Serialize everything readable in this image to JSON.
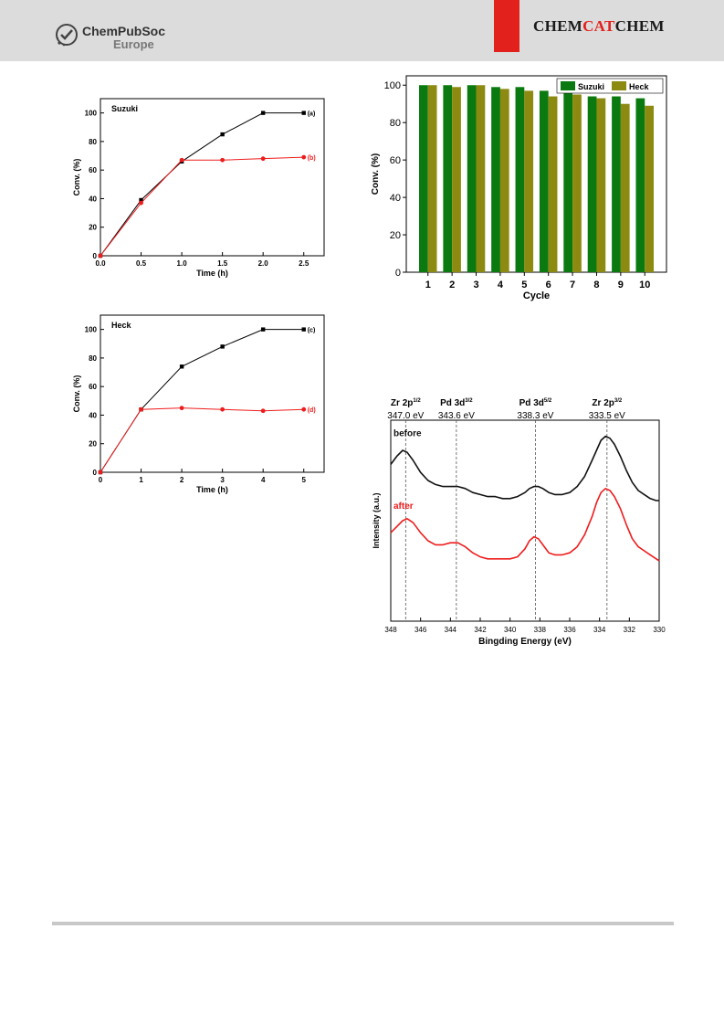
{
  "header": {
    "publisher_main": "ChemPubSoc",
    "publisher_sub": "Europe",
    "journal_part1": "CHEM",
    "journal_part2": "CAT",
    "journal_part3": "CHEM",
    "accent_color": "#e2211c",
    "header_bg": "#dcdcdc"
  },
  "chart_data": [
    {
      "id": "suzuki",
      "type": "line",
      "title": "Suzuki",
      "xlabel": "Time (h)",
      "ylabel": "Conv. (%)",
      "xlim": [
        0,
        2.75
      ],
      "ylim": [
        0,
        110
      ],
      "xticks": [
        0,
        0.5,
        1.0,
        1.5,
        2.0,
        2.5
      ],
      "xtick_labels": [
        "0.0",
        "0.5",
        "1.0",
        "1.5",
        "2.0",
        "2.5"
      ],
      "yticks": [
        0,
        20,
        40,
        60,
        80,
        100
      ],
      "series": [
        {
          "name": "(a)",
          "color": "#000000",
          "marker": "square",
          "x": [
            0,
            0.5,
            1.0,
            1.5,
            2.0,
            2.5
          ],
          "y": [
            0,
            39,
            66,
            85,
            100,
            100
          ]
        },
        {
          "name": "(b)",
          "color": "#ee1c1c",
          "marker": "circle",
          "x": [
            0,
            0.5,
            1.0,
            1.5,
            2.0,
            2.5
          ],
          "y": [
            0,
            37,
            67,
            67,
            68,
            69
          ]
        }
      ]
    },
    {
      "id": "heck",
      "type": "line",
      "title": "Heck",
      "xlabel": "Time (h)",
      "ylabel": "Conv. (%)",
      "xlim": [
        0,
        5.5
      ],
      "ylim": [
        0,
        110
      ],
      "xticks": [
        0,
        1,
        2,
        3,
        4,
        5
      ],
      "xtick_labels": [
        "0",
        "1",
        "2",
        "3",
        "4",
        "5"
      ],
      "yticks": [
        0,
        20,
        40,
        60,
        80,
        100
      ],
      "series": [
        {
          "name": "(c)",
          "color": "#000000",
          "marker": "square",
          "x": [
            0,
            1,
            2,
            3,
            4,
            5
          ],
          "y": [
            0,
            44,
            74,
            88,
            100,
            100
          ]
        },
        {
          "name": "(d)",
          "color": "#ee1c1c",
          "marker": "circle",
          "x": [
            0,
            1,
            2,
            3,
            4,
            5
          ],
          "y": [
            0,
            44,
            45,
            44,
            43,
            44
          ]
        }
      ]
    },
    {
      "id": "recycle",
      "type": "bar",
      "xlabel": "Cycle",
      "ylabel": "Conv. (%)",
      "ylim": [
        0,
        105
      ],
      "yticks": [
        0,
        20,
        40,
        60,
        80,
        100
      ],
      "categories": [
        "1",
        "2",
        "3",
        "4",
        "5",
        "6",
        "7",
        "8",
        "9",
        "10"
      ],
      "legend": "top",
      "series": [
        {
          "name": "Suzuki",
          "color": "#0a7a10",
          "values": [
            100,
            100,
            100,
            99,
            99,
            97,
            96,
            94,
            94,
            93
          ]
        },
        {
          "name": "Heck",
          "color": "#8c8a10",
          "values": [
            100,
            99,
            100,
            98,
            97,
            94,
            95,
            93,
            90,
            89
          ]
        }
      ]
    },
    {
      "id": "xps",
      "type": "line",
      "xlabel": "Bingding Energy (eV)",
      "ylabel": "Intensity (a.u.)",
      "xlim": [
        348,
        330
      ],
      "xticks": [
        348,
        346,
        344,
        342,
        340,
        338,
        336,
        334,
        332,
        330
      ],
      "ylim": [
        0,
        1
      ],
      "peak_labels": [
        {
          "name": "Zr 2p",
          "sup": "1/2",
          "ev": "347.0 eV",
          "x": 347.0
        },
        {
          "name": "Pd 3d",
          "sup": "3/2",
          "ev": "343.6 eV",
          "x": 343.6
        },
        {
          "name": "Pd 3d",
          "sup": "5/2",
          "ev": "338.3 eV",
          "x": 338.3
        },
        {
          "name": "Zr 2p",
          "sup": "3/2",
          "ev": "333.5 eV",
          "x": 333.5
        }
      ],
      "series": [
        {
          "name": "before",
          "color": "#111111",
          "x": [
            348,
            347.6,
            347.2,
            346.9,
            346.5,
            346.0,
            345.5,
            345.0,
            344.5,
            344.0,
            343.5,
            343.0,
            342.5,
            342.0,
            341.5,
            341.0,
            340.5,
            340.0,
            339.5,
            339.0,
            338.7,
            338.4,
            338.1,
            337.8,
            337.4,
            337.0,
            336.5,
            336.0,
            335.5,
            335.0,
            334.5,
            334.2,
            333.9,
            333.6,
            333.3,
            333.0,
            332.6,
            332.2,
            331.8,
            331.4,
            331.0,
            330.6,
            330.2,
            330.0
          ],
          "y": [
            0.78,
            0.82,
            0.85,
            0.84,
            0.8,
            0.74,
            0.7,
            0.68,
            0.67,
            0.67,
            0.67,
            0.66,
            0.64,
            0.63,
            0.62,
            0.62,
            0.61,
            0.61,
            0.62,
            0.64,
            0.66,
            0.67,
            0.67,
            0.66,
            0.64,
            0.63,
            0.63,
            0.64,
            0.67,
            0.72,
            0.8,
            0.85,
            0.9,
            0.92,
            0.91,
            0.88,
            0.82,
            0.75,
            0.69,
            0.65,
            0.63,
            0.61,
            0.6,
            0.6
          ]
        },
        {
          "name": "after",
          "color": "#ee1c1c",
          "x": [
            348,
            347.6,
            347.2,
            346.9,
            346.5,
            346.0,
            345.5,
            345.0,
            344.5,
            344.0,
            343.5,
            343.0,
            342.5,
            342.0,
            341.5,
            341.0,
            340.5,
            340.0,
            339.5,
            339.0,
            338.7,
            338.4,
            338.1,
            337.8,
            337.4,
            337.0,
            336.5,
            336.0,
            335.5,
            335.0,
            334.5,
            334.2,
            333.9,
            333.6,
            333.3,
            333.0,
            332.6,
            332.2,
            331.8,
            331.4,
            331.0,
            330.6,
            330.2,
            330.0
          ],
          "y": [
            0.44,
            0.47,
            0.5,
            0.51,
            0.49,
            0.44,
            0.4,
            0.38,
            0.38,
            0.39,
            0.39,
            0.37,
            0.34,
            0.32,
            0.31,
            0.31,
            0.31,
            0.31,
            0.32,
            0.36,
            0.4,
            0.42,
            0.41,
            0.38,
            0.34,
            0.33,
            0.33,
            0.34,
            0.37,
            0.43,
            0.52,
            0.59,
            0.64,
            0.66,
            0.65,
            0.62,
            0.56,
            0.48,
            0.41,
            0.37,
            0.35,
            0.33,
            0.31,
            0.3
          ]
        }
      ]
    }
  ]
}
